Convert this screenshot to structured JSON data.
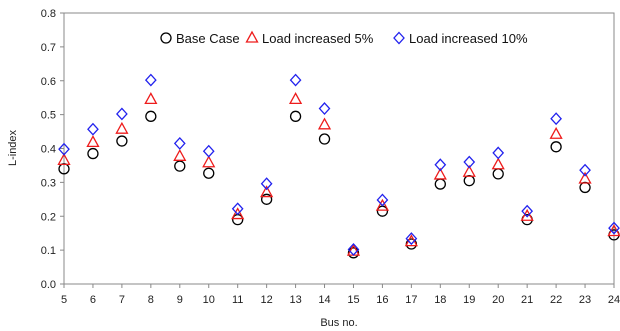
{
  "chart_data": {
    "type": "scatter",
    "xlabel": "Bus no.",
    "ylabel": "L-index",
    "xlim": [
      5,
      24
    ],
    "ylim": [
      0,
      0.8
    ],
    "x_ticks": [
      5,
      6,
      7,
      8,
      9,
      10,
      11,
      12,
      13,
      14,
      15,
      16,
      17,
      18,
      19,
      20,
      21,
      22,
      23,
      24
    ],
    "y_ticks": [
      0,
      0.1,
      0.2,
      0.3,
      0.4,
      0.5,
      0.6,
      0.7,
      0.8
    ],
    "grid": false,
    "legend_position": "top-center",
    "x": [
      5,
      6,
      7,
      8,
      9,
      10,
      11,
      12,
      13,
      14,
      15,
      16,
      17,
      18,
      19,
      20,
      21,
      22,
      23,
      24
    ],
    "series": [
      {
        "name": "Base Case",
        "marker": "circle",
        "color": "#000000",
        "values": [
          0.34,
          0.385,
          0.422,
          0.495,
          0.348,
          0.327,
          0.19,
          0.25,
          0.495,
          0.428,
          0.092,
          0.215,
          0.118,
          0.295,
          0.305,
          0.325,
          0.19,
          0.405,
          0.285,
          0.145
        ]
      },
      {
        "name": "Load increased 5%",
        "marker": "triangle",
        "color": "#ee1c1c",
        "values": [
          0.365,
          0.418,
          0.457,
          0.545,
          0.377,
          0.358,
          0.205,
          0.27,
          0.545,
          0.47,
          0.097,
          0.23,
          0.125,
          0.322,
          0.33,
          0.352,
          0.2,
          0.442,
          0.31,
          0.155
        ]
      },
      {
        "name": "Load increased 10%",
        "marker": "diamond",
        "color": "#2222ee",
        "values": [
          0.398,
          0.457,
          0.502,
          0.602,
          0.415,
          0.392,
          0.222,
          0.296,
          0.602,
          0.518,
          0.102,
          0.248,
          0.134,
          0.352,
          0.36,
          0.387,
          0.215,
          0.488,
          0.336,
          0.165
        ]
      }
    ]
  }
}
